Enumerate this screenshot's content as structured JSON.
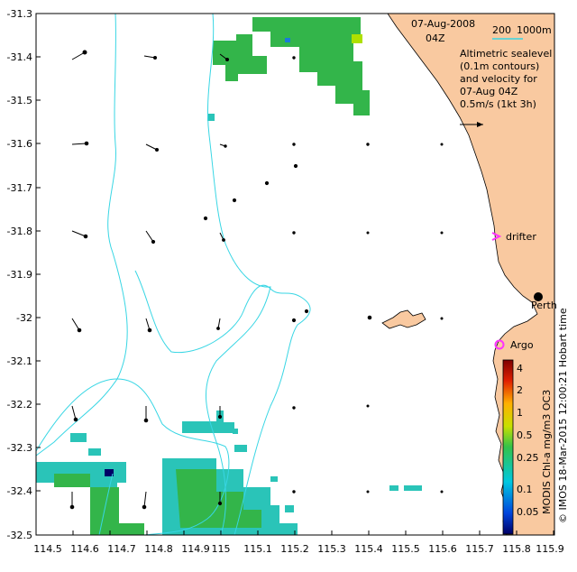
{
  "map": {
    "title_date": "07-Aug-2008",
    "title_time": "04Z",
    "scale_labels": [
      "200",
      "1000m"
    ],
    "legend_lines": [
      "Altimetric sealevel",
      "(0.1m contours)",
      "and velocity for",
      "07-Aug 04Z",
      "0.5m/s (1kt 3h)"
    ],
    "markers": {
      "drifter": "drifter",
      "perth": "Perth",
      "argo": "Argo"
    },
    "credit": "© IMOS 18-Mar-2015 12:00:21 Hobart time",
    "colorbar_label": "MODIS Chl-a mg/m3 OC3",
    "colorbar_ticks": [
      "4",
      "2",
      "1",
      "0.5",
      "0.25",
      "0.1",
      "0.05"
    ],
    "xticks": [
      "114.5",
      "114.6",
      "114.7",
      "114.8",
      "114.9",
      "115",
      "115.1",
      "115.2",
      "115.3",
      "115.4",
      "115.5",
      "115.6",
      "115.7",
      "115.8",
      "115.9"
    ],
    "yticks": [
      "-31.3",
      "-31.4",
      "-31.5",
      "-31.6",
      "-31.7",
      "-31.8",
      "-31.9",
      "-32",
      "-32.1",
      "-32.2",
      "-32.3",
      "-32.4",
      "-32.5"
    ],
    "colors": {
      "land": "#f9c9a0",
      "contour": "#38d6e4",
      "marker": "#ff33ff",
      "chl_green": "#33b54a",
      "chl_teal": "#2ac4b8"
    }
  }
}
